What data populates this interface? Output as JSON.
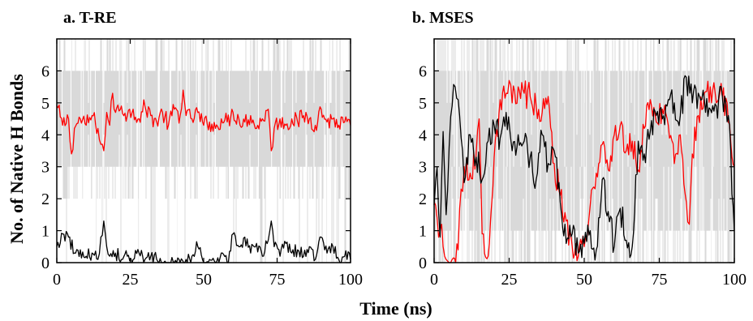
{
  "figure": {
    "ylabel": "No. of Native H Bonds",
    "xlabel": "Time (ns)"
  },
  "colors": {
    "background_band": "#d9d9d9",
    "black_series": "#000000",
    "red_series": "#ff0000"
  },
  "chart_data": [
    {
      "type": "line",
      "title": "a. T-RE",
      "xlim": [
        0,
        100
      ],
      "ylim": [
        0,
        7
      ],
      "xticks": [
        0,
        25,
        50,
        75,
        100
      ],
      "yticks": [
        0,
        1,
        2,
        3,
        4,
        5,
        6
      ],
      "xlabel": "Time (ns)",
      "ylabel": "No. of Native H Bonds",
      "grid": false,
      "background": "dense gray vertical lines of instantaneous counts, mostly spanning 3–6, with sparser excursions to 0–7",
      "series": [
        {
          "color": "#ff0000",
          "x": [
            0,
            2,
            4,
            5,
            6,
            8,
            10,
            12,
            14,
            15,
            16,
            17,
            18,
            19,
            20,
            22,
            24,
            26,
            28,
            30,
            32,
            34,
            36,
            38,
            40,
            42,
            43,
            44,
            46,
            48,
            50,
            52,
            54,
            56,
            58,
            60,
            62,
            64,
            66,
            68,
            70,
            72,
            73,
            74,
            76,
            78,
            80,
            82,
            84,
            86,
            88,
            90,
            92,
            94,
            96,
            98,
            100
          ],
          "values": [
            4.9,
            4.3,
            4.5,
            3.4,
            4.2,
            4.5,
            4.3,
            4.6,
            4.2,
            3.7,
            3.5,
            4.7,
            4.3,
            5.3,
            4.7,
            4.9,
            4.6,
            4.8,
            4.5,
            4.9,
            4.6,
            4.4,
            4.7,
            4.3,
            4.8,
            4.6,
            5.4,
            4.6,
            4.5,
            4.7,
            4.3,
            4.4,
            4.2,
            4.5,
            4.4,
            4.7,
            4.5,
            4.4,
            4.6,
            4.2,
            4.5,
            4.8,
            3.5,
            4.2,
            4.5,
            4.3,
            4.5,
            4.4,
            4.6,
            4.5,
            4.3,
            4.8,
            4.4,
            4.5,
            4.3,
            4.4,
            4.3
          ]
        },
        {
          "color": "#000000",
          "x": [
            0,
            2,
            4,
            6,
            8,
            10,
            12,
            14,
            15,
            16,
            17,
            18,
            20,
            22,
            24,
            26,
            28,
            30,
            32,
            34,
            36,
            38,
            40,
            42,
            44,
            46,
            48,
            50,
            52,
            54,
            56,
            58,
            60,
            62,
            64,
            66,
            68,
            70,
            72,
            73,
            74,
            76,
            78,
            80,
            82,
            84,
            86,
            88,
            90,
            92,
            94,
            96,
            98,
            100
          ],
          "values": [
            0.5,
            0.9,
            0.8,
            0.3,
            0.4,
            0.2,
            0.3,
            0.1,
            0.8,
            1.3,
            0.5,
            0.2,
            0.3,
            0.1,
            0.2,
            0.1,
            0.3,
            0.1,
            0.2,
            0.1,
            0.0,
            0.0,
            0.0,
            0.0,
            0.1,
            0.2,
            0.5,
            0.0,
            0.1,
            0.0,
            0.3,
            0.0,
            0.9,
            0.5,
            0.8,
            0.3,
            0.6,
            0.2,
            0.7,
            1.3,
            0.5,
            0.2,
            0.6,
            0.3,
            0.4,
            0.2,
            0.5,
            0.1,
            0.8,
            0.3,
            0.5,
            0.1,
            0.2,
            0.1
          ]
        }
      ]
    },
    {
      "type": "line",
      "title": "b. MSES",
      "xlim": [
        0,
        100
      ],
      "ylim": [
        0,
        7
      ],
      "xticks": [
        0,
        25,
        50,
        75,
        100
      ],
      "yticks": [
        0,
        1,
        2,
        3,
        4,
        5,
        6
      ],
      "xlabel": "Time (ns)",
      "ylabel": "",
      "grid": false,
      "background": "dense gray vertical lines of instantaneous counts spanning most of 0–7",
      "series": [
        {
          "color": "#ff0000",
          "x": [
            0,
            1,
            2,
            3,
            4,
            5,
            6,
            8,
            9,
            10,
            12,
            14,
            15,
            16,
            18,
            20,
            22,
            24,
            25,
            26,
            28,
            30,
            32,
            34,
            36,
            38,
            40,
            42,
            44,
            46,
            48,
            50,
            52,
            54,
            56,
            58,
            60,
            62,
            64,
            66,
            68,
            70,
            72,
            74,
            76,
            78,
            80,
            82,
            84,
            85,
            86,
            88,
            90,
            92,
            94,
            96,
            98,
            100
          ],
          "values": [
            1.9,
            1.4,
            1.0,
            0.5,
            0.1,
            0.0,
            0.1,
            0.4,
            2.3,
            3.0,
            2.8,
            3.4,
            4.5,
            0.9,
            0.2,
            3.3,
            5.1,
            5.3,
            5.7,
            5.0,
            5.5,
            5.3,
            5.2,
            4.9,
            4.7,
            5.2,
            3.1,
            2.1,
            1.3,
            0.5,
            0.2,
            0.5,
            1.8,
            2.8,
            3.7,
            2.9,
            4.0,
            4.3,
            3.5,
            3.8,
            2.9,
            4.2,
            5.1,
            4.4,
            4.8,
            4.3,
            3.1,
            4.0,
            1.9,
            1.2,
            3.4,
            4.6,
            5.3,
            5.5,
            5.0,
            5.2,
            4.4,
            3.0
          ]
        },
        {
          "color": "#000000",
          "x": [
            0,
            1,
            2,
            3,
            4,
            5,
            6,
            7,
            8,
            9,
            10,
            12,
            14,
            16,
            18,
            20,
            22,
            24,
            26,
            28,
            30,
            32,
            34,
            36,
            38,
            40,
            42,
            44,
            46,
            48,
            50,
            52,
            54,
            56,
            58,
            60,
            62,
            64,
            66,
            68,
            70,
            72,
            74,
            76,
            78,
            80,
            82,
            84,
            86,
            88,
            90,
            92,
            94,
            96,
            98,
            100
          ],
          "values": [
            1.8,
            3.0,
            0.8,
            4.1,
            1.5,
            3.6,
            4.9,
            5.5,
            5.1,
            3.9,
            2.5,
            4.0,
            3.3,
            2.6,
            3.8,
            4.3,
            3.9,
            4.7,
            3.5,
            4.0,
            3.8,
            3.3,
            2.6,
            4.0,
            3.1,
            3.5,
            1.9,
            0.6,
            0.9,
            0.3,
            0.6,
            1.0,
            0.4,
            2.6,
            1.6,
            0.5,
            1.7,
            0.7,
            0.5,
            3.8,
            3.4,
            4.1,
            4.6,
            4.5,
            5.1,
            5.0,
            4.6,
            5.8,
            5.0,
            5.3,
            5.1,
            4.8,
            4.9,
            5.2,
            4.6,
            1.0
          ]
        }
      ]
    }
  ]
}
